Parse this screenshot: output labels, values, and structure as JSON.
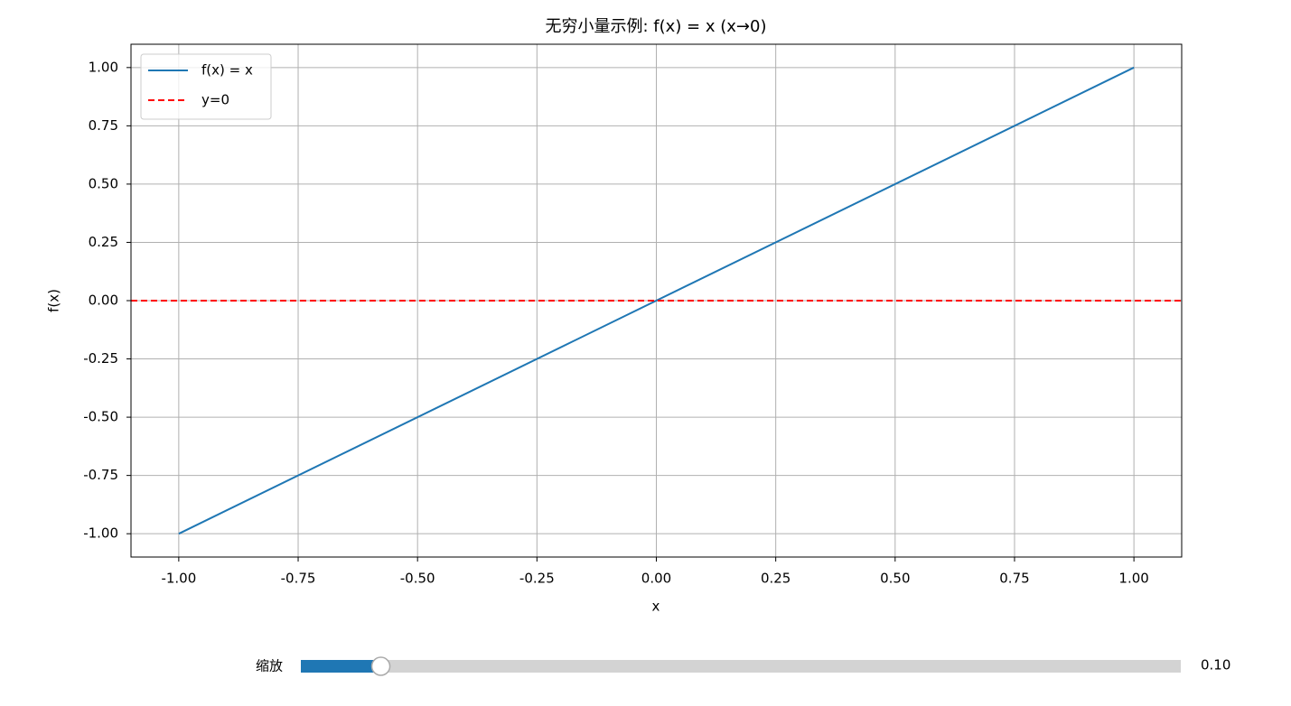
{
  "chart_data": {
    "type": "line",
    "title": "无穷小量示例: f(x) = x (x→0)",
    "xlabel": "x",
    "ylabel": "f(x)",
    "xlim": [
      -1.1,
      1.1
    ],
    "ylim": [
      -1.1,
      1.1
    ],
    "xticks": [
      {
        "value": -1,
        "label": "-1.00"
      },
      {
        "value": -0.75,
        "label": "-0.75"
      },
      {
        "value": -0.5,
        "label": "-0.50"
      },
      {
        "value": -0.25,
        "label": "-0.25"
      },
      {
        "value": 0,
        "label": "0.00"
      },
      {
        "value": 0.25,
        "label": "0.25"
      },
      {
        "value": 0.5,
        "label": "0.50"
      },
      {
        "value": 0.75,
        "label": "0.75"
      },
      {
        "value": 1,
        "label": "1.00"
      }
    ],
    "yticks": [
      {
        "value": -1,
        "label": "-1.00"
      },
      {
        "value": -0.75,
        "label": "-0.75"
      },
      {
        "value": -0.5,
        "label": "-0.50"
      },
      {
        "value": -0.25,
        "label": "-0.25"
      },
      {
        "value": 0,
        "label": "0.00"
      },
      {
        "value": 0.25,
        "label": "0.25"
      },
      {
        "value": 0.5,
        "label": "0.50"
      },
      {
        "value": 0.75,
        "label": "0.75"
      },
      {
        "value": 1,
        "label": "1.00"
      }
    ],
    "grid": true,
    "legend": "upper left",
    "series": [
      {
        "name": "f(x) = x",
        "color": "#1f77b4",
        "x": [
          -1,
          1
        ],
        "values": [
          -1,
          1
        ]
      }
    ],
    "hlines": [
      {
        "name": "y=0",
        "color": "#ff0000",
        "style": "dashed",
        "value": 0
      }
    ],
    "slider": {
      "label": "缩放",
      "min": 0.01,
      "max": 1,
      "value": 0.1,
      "value_label": "0.10",
      "color": "#1f77b4"
    }
  }
}
